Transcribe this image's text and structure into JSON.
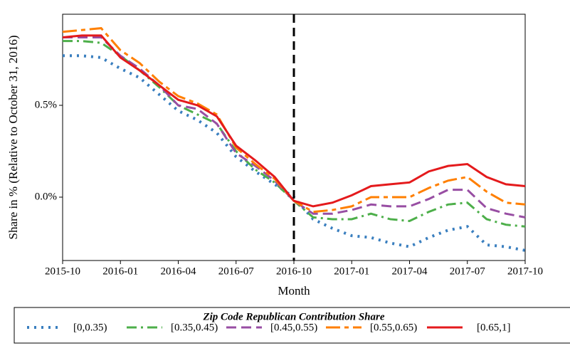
{
  "chart_data": {
    "type": "line",
    "x": [
      "2015-10",
      "2015-11",
      "2015-12",
      "2016-01",
      "2016-02",
      "2016-03",
      "2016-04",
      "2016-05",
      "2016-06",
      "2016-07",
      "2016-08",
      "2016-09",
      "2016-10",
      "2016-11",
      "2016-12",
      "2017-01",
      "2017-02",
      "2017-03",
      "2017-04",
      "2017-05",
      "2017-06",
      "2017-07",
      "2017-08",
      "2017-09",
      "2017-10"
    ],
    "series": [
      {
        "name": "[0,0.35)",
        "color": "#3a7fbf",
        "style": "dotted",
        "values": [
          0.77,
          0.77,
          0.76,
          0.7,
          0.65,
          0.56,
          0.47,
          0.42,
          0.35,
          0.22,
          0.14,
          0.07,
          0.0,
          -0.12,
          -0.17,
          -0.21,
          -0.22,
          -0.25,
          -0.27,
          -0.22,
          -0.18,
          -0.16,
          -0.26,
          -0.27,
          -0.29
        ]
      },
      {
        "name": "[0.35,0.45)",
        "color": "#4daf4a",
        "style": "dashdot",
        "values": [
          0.85,
          0.85,
          0.84,
          0.77,
          0.69,
          0.6,
          0.5,
          0.45,
          0.4,
          0.25,
          0.15,
          0.08,
          -0.02,
          -0.11,
          -0.12,
          -0.12,
          -0.09,
          -0.12,
          -0.13,
          -0.08,
          -0.04,
          -0.03,
          -0.12,
          -0.15,
          -0.16
        ]
      },
      {
        "name": "[0.45,0.55)",
        "color": "#984ea3",
        "style": "dashed",
        "values": [
          0.87,
          0.87,
          0.87,
          0.77,
          0.7,
          0.61,
          0.5,
          0.48,
          0.4,
          0.24,
          0.17,
          0.09,
          -0.02,
          -0.09,
          -0.09,
          -0.07,
          -0.04,
          -0.05,
          -0.05,
          -0.01,
          0.04,
          0.04,
          -0.06,
          -0.09,
          -0.11
        ]
      },
      {
        "name": "[0.55,0.65)",
        "color": "#ff7f00",
        "style": "longdashdot",
        "values": [
          0.9,
          0.91,
          0.92,
          0.8,
          0.73,
          0.63,
          0.55,
          0.51,
          0.45,
          0.27,
          0.18,
          0.1,
          -0.02,
          -0.08,
          -0.07,
          -0.05,
          0.0,
          0.0,
          0.0,
          0.05,
          0.09,
          0.11,
          0.03,
          -0.03,
          -0.04
        ]
      },
      {
        "name": "[0.65,1]",
        "color": "#e41a1c",
        "style": "solid",
        "values": [
          0.87,
          0.88,
          0.88,
          0.76,
          0.69,
          0.61,
          0.53,
          0.5,
          0.44,
          0.28,
          0.2,
          0.11,
          -0.02,
          -0.05,
          -0.03,
          0.01,
          0.06,
          0.07,
          0.08,
          0.14,
          0.17,
          0.18,
          0.11,
          0.07,
          0.06
        ]
      }
    ],
    "xlim": [
      "2015-10",
      "2017-10"
    ],
    "xticks": [
      "2015-10",
      "2016-01",
      "2016-04",
      "2016-07",
      "2016-10",
      "2017-01",
      "2017-04",
      "2017-07",
      "2017-10"
    ],
    "ylim": [
      -0.345,
      0.996
    ],
    "yticks": [
      {
        "value": 0,
        "label": "0.0%"
      },
      {
        "value": 0.5,
        "label": "0.5%"
      }
    ],
    "vline": "2016-10",
    "xlabel": "Month",
    "ylabel": "Share in % (Relative to October 31, 2016)",
    "legend_title": "Zip Code Republican Contribution Share",
    "legend": "below"
  }
}
